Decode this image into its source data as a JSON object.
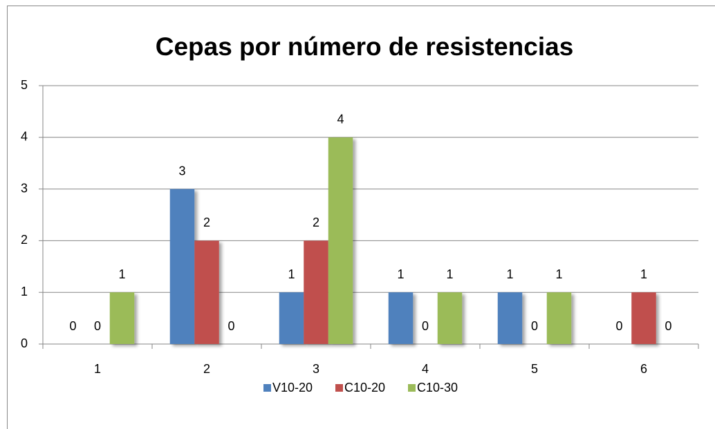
{
  "chart_data": {
    "type": "bar",
    "title": "Cepas por número de resistencias",
    "categories": [
      "1",
      "2",
      "3",
      "4",
      "5",
      "6"
    ],
    "series": [
      {
        "name": "V10-20",
        "color": "#4f81bd",
        "values": [
          0,
          3,
          1,
          1,
          1,
          0
        ]
      },
      {
        "name": "C10-20",
        "color": "#c0504d",
        "values": [
          0,
          2,
          2,
          0,
          0,
          1
        ]
      },
      {
        "name": "C10-30",
        "color": "#9bbb59",
        "values": [
          1,
          0,
          4,
          1,
          1,
          0
        ]
      }
    ],
    "ylim": [
      0,
      5
    ],
    "yticks": [
      0,
      1,
      2,
      3,
      4,
      5
    ],
    "grid": true,
    "legend": "bottom"
  }
}
